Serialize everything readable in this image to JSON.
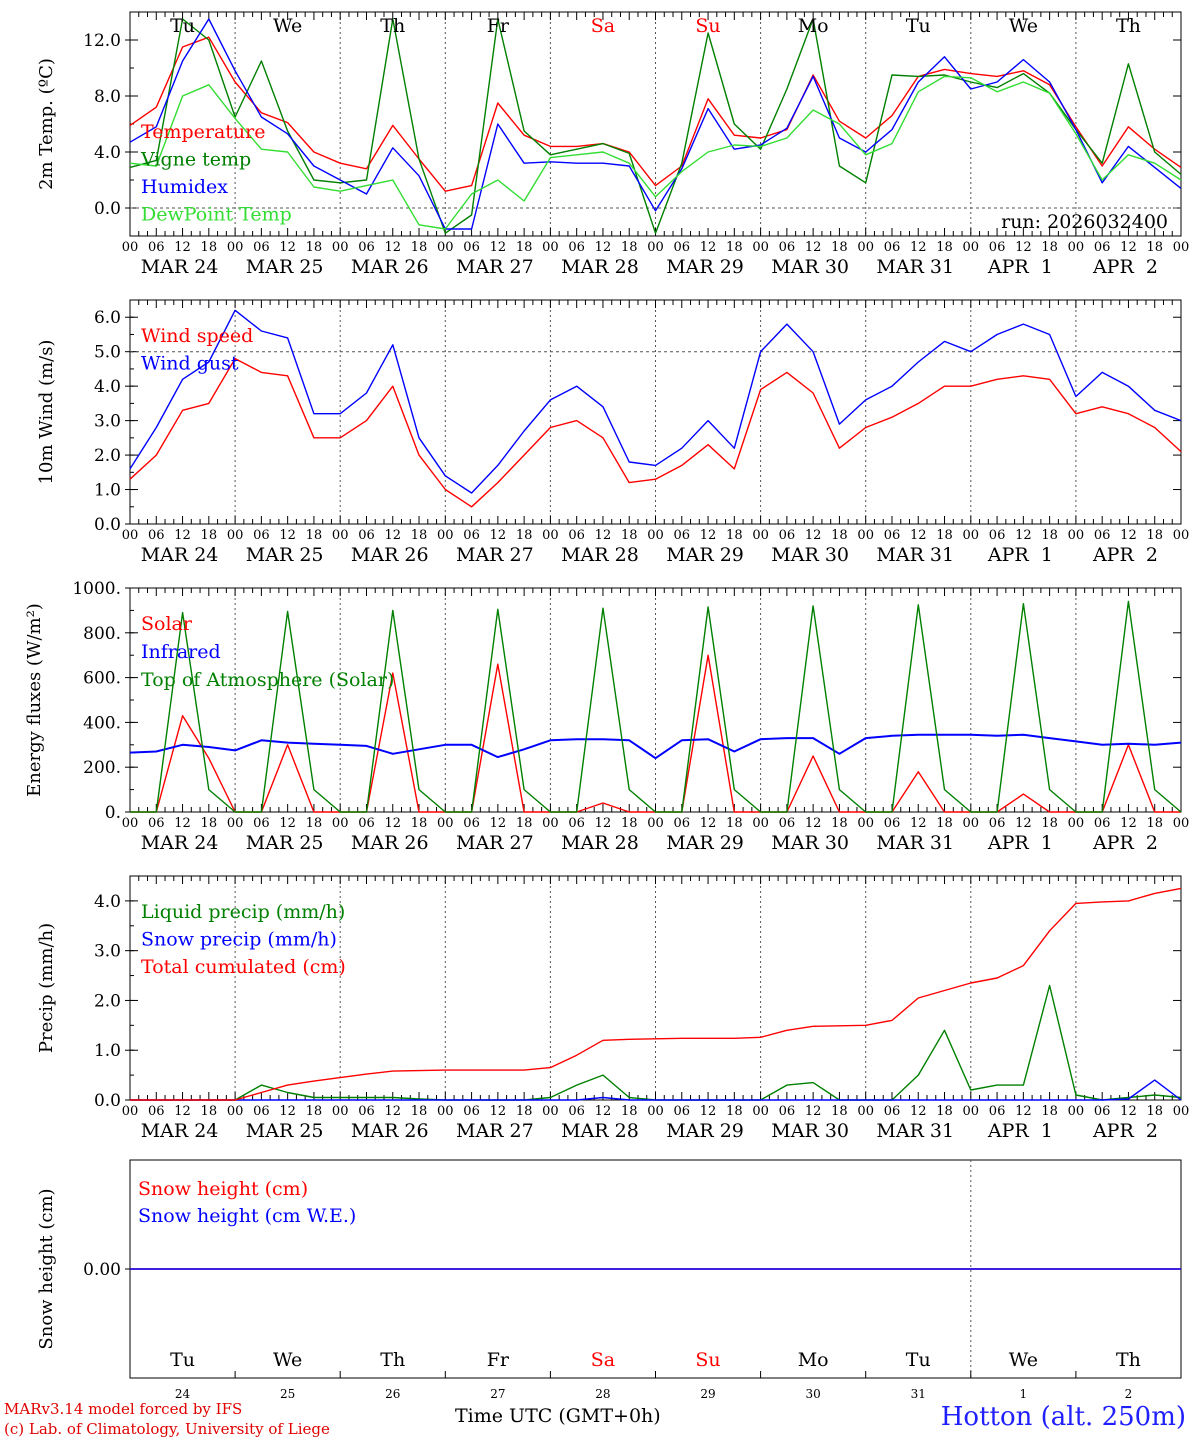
{
  "chart_data": [
    {
      "type": "line",
      "id": "temperature",
      "ylabel": "2m Temp. (ºC)",
      "ylim": [
        -2.0,
        14.0
      ],
      "yticks": [
        0.0,
        4.0,
        8.0,
        12.0
      ],
      "ytick_labels": [
        "0.0",
        "4.0",
        "8.0",
        "12.0"
      ],
      "reference_line": 0.0,
      "run_label": "run: 2026032400",
      "x_hours": [
        0,
        6,
        12,
        18,
        24,
        30,
        36,
        42,
        48,
        54,
        60,
        66,
        72,
        78,
        84,
        90,
        96,
        102,
        108,
        114,
        120,
        126,
        132,
        138,
        144,
        150,
        156,
        162,
        168,
        174,
        180,
        186,
        192,
        198,
        204,
        210,
        216,
        222,
        228,
        234,
        240
      ],
      "series": [
        {
          "name": "Temperature",
          "color": "#ff0000",
          "values": [
            5.9,
            7.2,
            11.5,
            12.2,
            9.0,
            6.8,
            6.1,
            4.0,
            3.2,
            2.8,
            5.9,
            3.5,
            1.2,
            1.6,
            7.5,
            5.2,
            4.4,
            4.4,
            4.6,
            4.0,
            1.6,
            3.0,
            7.8,
            5.2,
            5.0,
            5.6,
            9.5,
            6.2,
            5.0,
            6.6,
            9.4,
            9.9,
            9.6,
            9.4,
            9.8,
            8.8,
            5.8,
            3.0,
            5.8,
            4.2,
            2.9
          ]
        },
        {
          "name": "Vigne temp",
          "color": "#008000",
          "values": [
            2.9,
            3.4,
            13.5,
            12.0,
            6.5,
            10.5,
            5.5,
            2.0,
            1.8,
            2.0,
            13.5,
            3.5,
            -1.8,
            -0.5,
            13.5,
            5.5,
            3.8,
            4.2,
            4.6,
            3.9,
            -1.8,
            3.2,
            12.5,
            6.0,
            4.2,
            8.5,
            13.5,
            3.0,
            1.8,
            9.5,
            9.4,
            9.5,
            9.0,
            8.6,
            9.6,
            8.2,
            5.6,
            3.2,
            10.3,
            4.0,
            2.4
          ]
        },
        {
          "name": "Humidex",
          "color": "#0000ff",
          "values": [
            4.7,
            5.8,
            10.5,
            13.5,
            9.8,
            6.5,
            5.3,
            3.0,
            2.0,
            1.0,
            4.3,
            2.3,
            -1.5,
            -1.5,
            6.0,
            3.2,
            3.3,
            3.2,
            3.2,
            3.0,
            -0.2,
            2.8,
            7.1,
            4.2,
            4.5,
            5.7,
            9.4,
            5.0,
            4.0,
            5.6,
            9.0,
            10.8,
            8.5,
            9.0,
            10.6,
            9.0,
            5.6,
            1.8,
            4.4,
            2.9,
            1.4
          ]
        },
        {
          "name": "DewPoint Temp",
          "color": "#33dd33",
          "values": [
            3.2,
            3.0,
            8.0,
            8.8,
            6.4,
            4.2,
            4.0,
            1.5,
            1.2,
            1.6,
            2.0,
            -1.2,
            -1.5,
            1.0,
            2.0,
            0.5,
            3.6,
            3.8,
            4.0,
            3.2,
            0.8,
            2.6,
            4.0,
            4.5,
            4.4,
            5.0,
            7.0,
            6.0,
            3.8,
            4.6,
            8.3,
            9.4,
            9.3,
            8.3,
            9.0,
            8.2,
            5.3,
            2.0,
            3.8,
            3.2,
            2.0
          ]
        }
      ]
    },
    {
      "type": "line",
      "id": "wind",
      "ylabel": "10m Wind (m/s)",
      "ylim": [
        0.0,
        6.5
      ],
      "yticks": [
        0.0,
        1.0,
        2.0,
        3.0,
        4.0,
        5.0,
        6.0
      ],
      "ytick_labels": [
        "0.0",
        "1.0",
        "2.0",
        "3.0",
        "4.0",
        "5.0",
        "6.0"
      ],
      "reference_line": 5.0,
      "x_hours": [
        0,
        6,
        12,
        18,
        24,
        30,
        36,
        42,
        48,
        54,
        60,
        66,
        72,
        78,
        84,
        90,
        96,
        102,
        108,
        114,
        120,
        126,
        132,
        138,
        144,
        150,
        156,
        162,
        168,
        174,
        180,
        186,
        192,
        198,
        204,
        210,
        216,
        222,
        228,
        234,
        240
      ],
      "series": [
        {
          "name": "Wind speed",
          "color": "#ff0000",
          "values": [
            1.3,
            2.0,
            3.3,
            3.5,
            4.8,
            4.4,
            4.3,
            2.5,
            2.5,
            3.0,
            4.0,
            2.0,
            1.0,
            0.5,
            1.2,
            2.0,
            2.8,
            3.0,
            2.5,
            1.2,
            1.3,
            1.7,
            2.3,
            1.6,
            3.9,
            4.4,
            3.8,
            2.2,
            2.8,
            3.1,
            3.5,
            4.0,
            4.0,
            4.2,
            4.3,
            4.2,
            3.2,
            3.4,
            3.2,
            2.8,
            2.1
          ]
        },
        {
          "name": "Wind gust",
          "color": "#0000ff",
          "values": [
            1.6,
            2.8,
            4.2,
            4.7,
            6.2,
            5.6,
            5.4,
            3.2,
            3.2,
            3.8,
            5.2,
            2.5,
            1.4,
            0.9,
            1.7,
            2.7,
            3.6,
            4.0,
            3.4,
            1.8,
            1.7,
            2.2,
            3.0,
            2.2,
            5.0,
            5.8,
            5.0,
            2.9,
            3.6,
            4.0,
            4.7,
            5.3,
            5.0,
            5.5,
            5.8,
            5.5,
            3.7,
            4.4,
            4.0,
            3.3,
            3.0
          ]
        }
      ]
    },
    {
      "type": "line",
      "id": "energy",
      "ylabel": "Energy fluxes (W/m²)",
      "ylim": [
        0,
        1000
      ],
      "yticks": [
        0,
        200,
        400,
        600,
        800,
        1000
      ],
      "ytick_labels": [
        "0.",
        "200.",
        "400.",
        "600.",
        "800.",
        "1000."
      ],
      "x_hours": [
        0,
        6,
        12,
        18,
        24,
        30,
        36,
        42,
        48,
        54,
        60,
        66,
        72,
        78,
        84,
        90,
        96,
        102,
        108,
        114,
        120,
        126,
        132,
        138,
        144,
        150,
        156,
        162,
        168,
        174,
        180,
        186,
        192,
        198,
        204,
        210,
        216,
        222,
        228,
        234,
        240
      ],
      "series": [
        {
          "name": "Solar",
          "color": "#ff0000",
          "values": [
            0,
            0,
            430,
            240,
            0,
            0,
            300,
            0,
            0,
            0,
            620,
            0,
            0,
            0,
            660,
            0,
            0,
            0,
            40,
            0,
            0,
            0,
            700,
            0,
            0,
            0,
            250,
            0,
            0,
            0,
            180,
            0,
            0,
            0,
            80,
            0,
            0,
            0,
            300,
            0,
            0
          ]
        },
        {
          "name": "Infrared",
          "color": "#0000ff",
          "values": [
            265,
            270,
            300,
            290,
            275,
            320,
            310,
            305,
            300,
            295,
            260,
            280,
            300,
            300,
            245,
            280,
            320,
            325,
            325,
            320,
            240,
            320,
            325,
            270,
            325,
            330,
            330,
            260,
            330,
            340,
            345,
            345,
            345,
            340,
            345,
            330,
            315,
            300,
            305,
            300,
            310
          ]
        },
        {
          "name": "Top of Atmosphere (Solar)",
          "color": "#008000",
          "values": [
            0,
            0,
            890,
            100,
            0,
            0,
            895,
            100,
            0,
            0,
            900,
            100,
            0,
            0,
            905,
            100,
            0,
            0,
            910,
            100,
            0,
            0,
            915,
            100,
            0,
            0,
            920,
            100,
            0,
            0,
            925,
            100,
            0,
            0,
            930,
            100,
            0,
            0,
            940,
            100,
            0
          ]
        }
      ]
    },
    {
      "type": "line",
      "id": "precip",
      "ylabel": "Precip (mm/h)",
      "ylim": [
        0.0,
        4.5
      ],
      "yticks": [
        0.0,
        1.0,
        2.0,
        3.0,
        4.0
      ],
      "ytick_labels": [
        "0.0",
        "1.0",
        "2.0",
        "3.0",
        "4.0"
      ],
      "x_hours": [
        0,
        6,
        12,
        18,
        24,
        30,
        36,
        42,
        48,
        54,
        60,
        66,
        72,
        78,
        84,
        90,
        96,
        102,
        108,
        114,
        120,
        126,
        132,
        138,
        144,
        150,
        156,
        162,
        168,
        174,
        180,
        186,
        192,
        198,
        204,
        210,
        216,
        222,
        228,
        234,
        240
      ],
      "series": [
        {
          "name": "Liquid precip (mm/h)",
          "color": "#008000",
          "values": [
            0,
            0,
            0,
            0,
            0,
            0.3,
            0.15,
            0.05,
            0.05,
            0.05,
            0.05,
            0.02,
            0,
            0,
            0,
            0,
            0.05,
            0.3,
            0.5,
            0.05,
            0,
            0,
            0,
            0,
            0,
            0.3,
            0.35,
            0,
            0,
            0,
            0.5,
            1.4,
            0.2,
            0.3,
            0.3,
            2.3,
            0.1,
            0,
            0.05,
            0.1,
            0.05
          ]
        },
        {
          "name": "Snow precip (mm/h)",
          "color": "#0000ff",
          "values": [
            0,
            0,
            0,
            0,
            0,
            0,
            0,
            0,
            0,
            0,
            0,
            0,
            0,
            0,
            0,
            0,
            0,
            0,
            0.05,
            0,
            0,
            0,
            0,
            0,
            0,
            0,
            0,
            0,
            0,
            0,
            0,
            0,
            0,
            0,
            0,
            0,
            0,
            0,
            0.02,
            0.4,
            0
          ]
        },
        {
          "name": "Total cumulated (cm)",
          "color": "#ff0000",
          "values": [
            0,
            0,
            0,
            0,
            0,
            0.15,
            0.3,
            0.38,
            0.45,
            0.52,
            0.58,
            0.59,
            0.6,
            0.6,
            0.6,
            0.6,
            0.65,
            0.9,
            1.2,
            1.22,
            1.23,
            1.24,
            1.24,
            1.24,
            1.26,
            1.4,
            1.48,
            1.49,
            1.5,
            1.6,
            2.05,
            2.2,
            2.35,
            2.45,
            2.7,
            3.4,
            3.95,
            3.98,
            4.0,
            4.15,
            4.25
          ]
        }
      ]
    },
    {
      "type": "line",
      "id": "snow",
      "ylabel": "Snow height (cm)",
      "ylim": [
        -1.0,
        1.0
      ],
      "yticks": [
        0.0
      ],
      "ytick_labels": [
        "0.00"
      ],
      "x_hours": [
        0,
        240
      ],
      "series": [
        {
          "name": "Snow height (cm)",
          "color": "#ff0000",
          "values": [
            0.0,
            0.0
          ]
        },
        {
          "name": "Snow height (cm W.E.)",
          "color": "#0000ff",
          "values": [
            0.0,
            0.0
          ]
        }
      ]
    }
  ],
  "days": [
    {
      "abbr": "Tu",
      "date_label": "MAR 24",
      "num": "24",
      "weekend": false
    },
    {
      "abbr": "We",
      "date_label": "MAR 25",
      "num": "25",
      "weekend": false
    },
    {
      "abbr": "Th",
      "date_label": "MAR 26",
      "num": "26",
      "weekend": false
    },
    {
      "abbr": "Fr",
      "date_label": "MAR 27",
      "num": "27",
      "weekend": false
    },
    {
      "abbr": "Sa",
      "date_label": "MAR 28",
      "num": "28",
      "weekend": true
    },
    {
      "abbr": "Su",
      "date_label": "MAR 29",
      "num": "29",
      "weekend": true
    },
    {
      "abbr": "Mo",
      "date_label": "MAR 30",
      "num": "30",
      "weekend": false
    },
    {
      "abbr": "Tu",
      "date_label": "MAR 31",
      "num": "31",
      "weekend": false
    },
    {
      "abbr": "We",
      "date_label": "APR  1",
      "num": "1",
      "weekend": false
    },
    {
      "abbr": "Th",
      "date_label": "APR  2",
      "num": "2",
      "weekend": false
    }
  ],
  "hour_ticks": [
    "00",
    "06",
    "12",
    "18"
  ],
  "hour_end": "00",
  "colors": {
    "weekday": "#000000",
    "weekend": "#ff0000",
    "axis": "#000000",
    "grid": "#555555"
  },
  "footer": {
    "credit_line_1": "MARv3.14 model forced by IFS",
    "credit_line_2": "(c) Lab. of Climatology, University of Liege",
    "time_label": "Time UTC (GMT+0h)",
    "station": "Hotton (alt. 250m)"
  }
}
